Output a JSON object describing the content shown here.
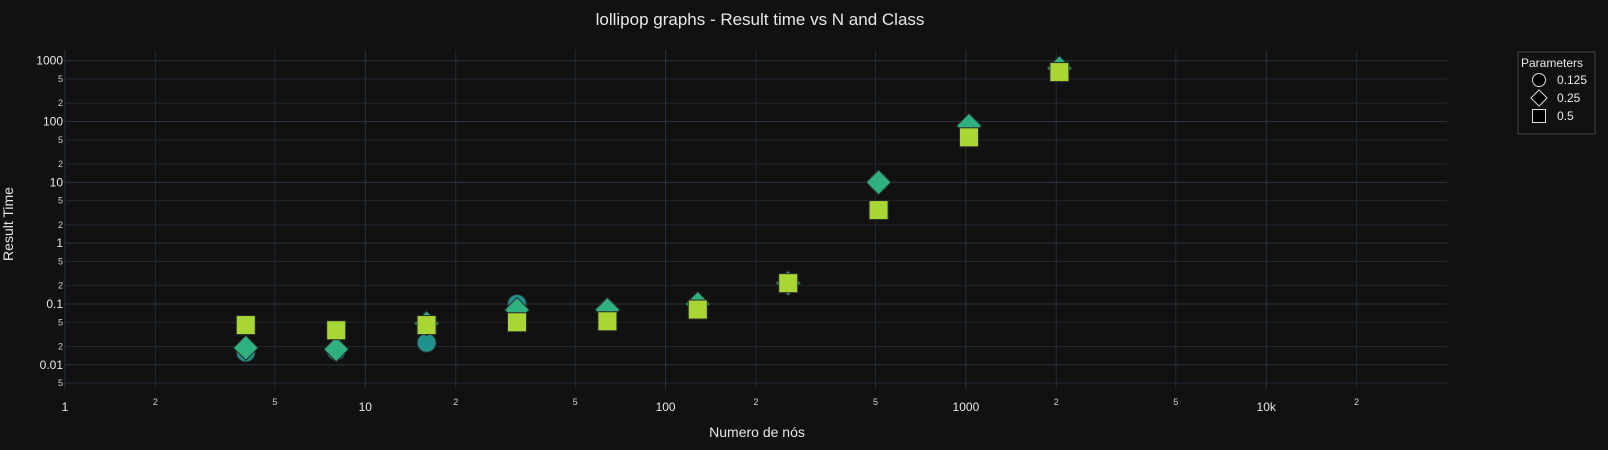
{
  "chart_data": {
    "type": "scatter",
    "title": "lollipop graphs - Result time vs N and Class",
    "xlabel": "Numero de nós",
    "ylabel": "Result Time",
    "x_scale": "log",
    "y_scale": "log",
    "xlim": [
      1,
      40000
    ],
    "ylim": [
      0.004,
      1500
    ],
    "grid": true,
    "x_major_ticks": [
      {
        "value": 1,
        "label": "1"
      },
      {
        "value": 10,
        "label": "10"
      },
      {
        "value": 100,
        "label": "100"
      },
      {
        "value": 1000,
        "label": "1000"
      },
      {
        "value": 10000,
        "label": "10k"
      }
    ],
    "x_minor_ticks": [
      {
        "value": 2,
        "label": "2"
      },
      {
        "value": 5,
        "label": "5"
      },
      {
        "value": 20,
        "label": "2"
      },
      {
        "value": 50,
        "label": "5"
      },
      {
        "value": 200,
        "label": "2"
      },
      {
        "value": 500,
        "label": "5"
      },
      {
        "value": 2000,
        "label": "2"
      },
      {
        "value": 5000,
        "label": "5"
      },
      {
        "value": 20000,
        "label": "2"
      }
    ],
    "y_major_ticks": [
      {
        "value": 0.01,
        "label": "0.01"
      },
      {
        "value": 0.1,
        "label": "0.1"
      },
      {
        "value": 1,
        "label": "1"
      },
      {
        "value": 10,
        "label": "10"
      },
      {
        "value": 100,
        "label": "100"
      },
      {
        "value": 1000,
        "label": "1000"
      }
    ],
    "y_minor_ticks": [
      {
        "value": 0.005,
        "label": "5"
      },
      {
        "value": 0.02,
        "label": "2"
      },
      {
        "value": 0.05,
        "label": "5"
      },
      {
        "value": 0.2,
        "label": "2"
      },
      {
        "value": 0.5,
        "label": "5"
      },
      {
        "value": 2,
        "label": "2"
      },
      {
        "value": 5,
        "label": "5"
      },
      {
        "value": 20,
        "label": "2"
      },
      {
        "value": 50,
        "label": "5"
      },
      {
        "value": 200,
        "label": "2"
      },
      {
        "value": 500,
        "label": "5"
      }
    ],
    "legend": {
      "title": "Parameters",
      "position": "top-right"
    },
    "series": [
      {
        "name": "0.125",
        "symbol": "circle",
        "color": "#21918c",
        "x": [
          4,
          8,
          16,
          32,
          64,
          128,
          256,
          512,
          1024,
          2048
        ],
        "y": [
          0.016,
          0.017,
          0.023,
          0.1,
          0.08,
          0.08,
          0.23,
          10,
          80,
          750
        ]
      },
      {
        "name": "0.25",
        "symbol": "diamond",
        "color": "#2fb07f",
        "x": [
          4,
          8,
          16,
          32,
          64,
          128,
          256,
          512,
          1024,
          2048
        ],
        "y": [
          0.019,
          0.018,
          0.048,
          0.08,
          0.08,
          0.1,
          0.22,
          10,
          85,
          750
        ]
      },
      {
        "name": "0.5",
        "symbol": "square",
        "color": "#a8d635",
        "x": [
          4,
          8,
          16,
          32,
          64,
          128,
          256,
          512,
          1024,
          2048
        ],
        "y": [
          0.045,
          0.037,
          0.045,
          0.05,
          0.052,
          0.081,
          0.22,
          3.5,
          55,
          650
        ]
      }
    ]
  }
}
